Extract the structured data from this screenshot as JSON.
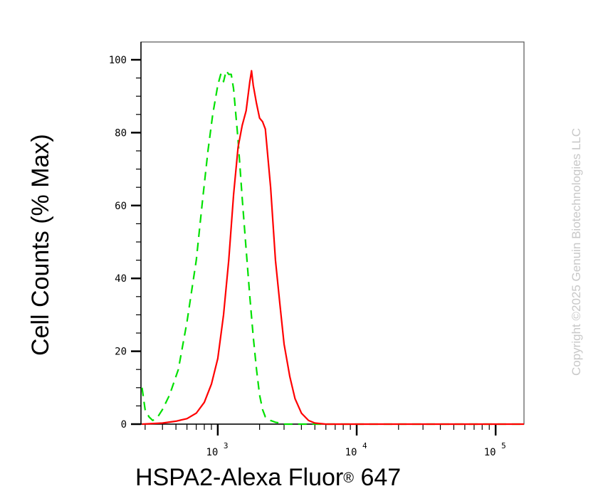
{
  "chart_data": {
    "type": "line",
    "title": "",
    "xlabel": "HSPA2-Alexa Fluor® 647",
    "xlabel_main": "HSPA2-Alexa Fluor",
    "xlabel_reg": "®",
    "xlabel_tail": " 647",
    "ylabel": "Cell Counts (% Max)",
    "x_scale": "log",
    "xlim": [
      280,
      160000
    ],
    "ylim": [
      0,
      105
    ],
    "yticks": [
      0,
      20,
      40,
      60,
      80,
      100
    ],
    "ytick_labels": [
      "0",
      "20",
      "40",
      "60",
      "80",
      "100"
    ],
    "xticks": [
      {
        "value": 1000,
        "base": "10",
        "exp": "3"
      },
      {
        "value": 10000,
        "base": "10",
        "exp": "4"
      },
      {
        "value": 100000,
        "base": "10",
        "exp": "5"
      }
    ],
    "grid": false,
    "legend": "none",
    "series": [
      {
        "color": "#00e000",
        "style": "dashed",
        "x": [
          285,
          300,
          320,
          340,
          370,
          400,
          450,
          520,
          600,
          700,
          780,
          850,
          920,
          1000,
          1050,
          1100,
          1150,
          1200,
          1250,
          1300,
          1400,
          1500,
          1600,
          1700,
          1800,
          1900,
          2000,
          2100,
          2200,
          2400,
          2600,
          2800,
          3000,
          4000,
          10000,
          100000,
          160000
        ],
        "y": [
          10,
          4,
          2,
          1,
          2,
          4,
          8,
          15,
          28,
          45,
          62,
          75,
          85,
          93,
          96,
          94,
          97,
          96,
          96,
          92,
          78,
          62,
          48,
          35,
          24,
          15,
          8,
          4,
          2,
          1,
          0.5,
          0.3,
          0,
          0,
          0,
          0,
          0
        ]
      },
      {
        "color": "#ff0000",
        "style": "solid",
        "x": [
          285,
          400,
          500,
          600,
          700,
          800,
          900,
          1000,
          1100,
          1200,
          1300,
          1400,
          1500,
          1600,
          1700,
          1750,
          1800,
          1900,
          2000,
          2100,
          2200,
          2400,
          2600,
          2800,
          3000,
          3300,
          3600,
          4000,
          4500,
          5000,
          6000,
          10000,
          100000,
          160000
        ],
        "y": [
          0,
          0.3,
          0.8,
          1.5,
          3,
          6,
          11,
          18,
          30,
          45,
          63,
          76,
          82,
          86,
          94,
          97,
          93,
          88,
          84,
          83,
          81,
          65,
          45,
          33,
          22,
          13,
          7,
          3,
          1,
          0.3,
          0,
          0,
          0,
          0
        ]
      }
    ]
  },
  "watermark": "Copyright ©2025 Genuin Biotechnologies LLC",
  "colors": {
    "axis": "#000000",
    "frame": "#555555",
    "watermark": "#c8c8c8"
  }
}
